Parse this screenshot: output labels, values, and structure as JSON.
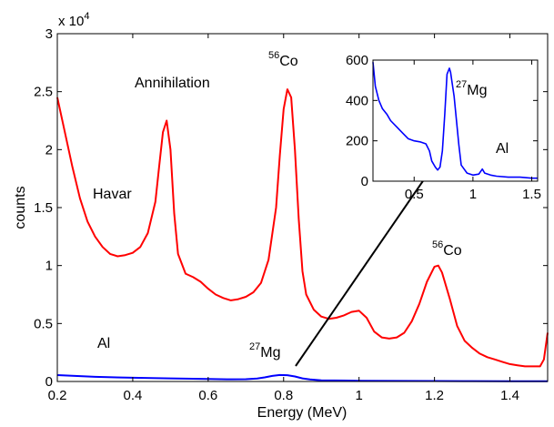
{
  "chart_data": [
    {
      "type": "line",
      "xlabel": "Energy (MeV)",
      "ylabel": "counts",
      "y_multiplier": "x 10",
      "y_multiplier_exp": "4",
      "xlim": [
        0.2,
        1.5
      ],
      "ylim": [
        0,
        30000
      ],
      "xticks": [
        "0.2",
        "0.4",
        "0.6",
        "0.8",
        "1",
        "1.2",
        "1.4"
      ],
      "yticks": [
        "0",
        "0.5",
        "1",
        "1.5",
        "2",
        "2.5",
        "3"
      ],
      "grid": false,
      "series": [
        {
          "color": "#ff0000",
          "x": [
            0.2,
            0.22,
            0.24,
            0.26,
            0.28,
            0.3,
            0.32,
            0.34,
            0.36,
            0.38,
            0.4,
            0.42,
            0.44,
            0.46,
            0.47,
            0.48,
            0.49,
            0.5,
            0.51,
            0.52,
            0.54,
            0.56,
            0.58,
            0.6,
            0.62,
            0.64,
            0.66,
            0.68,
            0.7,
            0.72,
            0.74,
            0.76,
            0.78,
            0.79,
            0.8,
            0.81,
            0.82,
            0.83,
            0.84,
            0.85,
            0.86,
            0.88,
            0.9,
            0.92,
            0.94,
            0.96,
            0.98,
            1.0,
            1.02,
            1.04,
            1.06,
            1.08,
            1.1,
            1.12,
            1.14,
            1.16,
            1.18,
            1.2,
            1.21,
            1.22,
            1.24,
            1.26,
            1.28,
            1.3,
            1.32,
            1.34,
            1.36,
            1.38,
            1.4,
            1.42,
            1.44,
            1.46,
            1.48,
            1.49,
            1.5
          ],
          "y": [
            24500,
            21500,
            18500,
            15800,
            13800,
            12500,
            11600,
            11000,
            10800,
            10900,
            11100,
            11600,
            12800,
            15500,
            18500,
            21500,
            22500,
            20000,
            14500,
            11000,
            9300,
            9000,
            8600,
            8000,
            7500,
            7200,
            7000,
            7100,
            7300,
            7700,
            8500,
            10500,
            15000,
            19500,
            23500,
            25200,
            24500,
            20000,
            14000,
            9500,
            7500,
            6200,
            5600,
            5400,
            5500,
            5700,
            6000,
            6100,
            5500,
            4300,
            3800,
            3700,
            3800,
            4200,
            5200,
            6700,
            8600,
            9900,
            10000,
            9400,
            7200,
            4800,
            3500,
            2900,
            2400,
            2100,
            1900,
            1700,
            1500,
            1400,
            1300,
            1300,
            1300,
            1900,
            4200
          ]
        },
        {
          "color": "#0000ff",
          "x": [
            0.2,
            0.3,
            0.4,
            0.5,
            0.6,
            0.65,
            0.7,
            0.73,
            0.75,
            0.77,
            0.79,
            0.81,
            0.83,
            0.85,
            0.87,
            0.9,
            1.0,
            1.1,
            1.2,
            1.3,
            1.4,
            1.5
          ],
          "y": [
            550,
            400,
            320,
            270,
            210,
            190,
            200,
            250,
            350,
            480,
            560,
            540,
            430,
            270,
            170,
            100,
            60,
            50,
            40,
            30,
            25,
            20
          ]
        }
      ],
      "annotations": [
        {
          "text": "Annihilation"
        },
        {
          "text": "Co",
          "sup": "56"
        },
        {
          "text": "Havar"
        },
        {
          "text": "Co",
          "sup": "56"
        },
        {
          "text": "Al"
        },
        {
          "text": "Mg",
          "sup": "27"
        }
      ]
    },
    {
      "type": "line",
      "xlim": [
        0.15,
        1.55
      ],
      "ylim": [
        0,
        600
      ],
      "xticks": [
        "0.5",
        "1",
        "1.5"
      ],
      "yticks": [
        "0",
        "200",
        "400",
        "600"
      ],
      "grid": false,
      "series": [
        {
          "color": "#0000ff",
          "x": [
            0.15,
            0.17,
            0.2,
            0.23,
            0.27,
            0.3,
            0.35,
            0.4,
            0.45,
            0.5,
            0.55,
            0.6,
            0.63,
            0.65,
            0.68,
            0.7,
            0.72,
            0.74,
            0.76,
            0.78,
            0.8,
            0.81,
            0.82,
            0.84,
            0.86,
            0.88,
            0.9,
            0.95,
            1.0,
            1.05,
            1.08,
            1.1,
            1.15,
            1.2,
            1.3,
            1.4,
            1.5,
            1.55
          ],
          "y": [
            590,
            470,
            400,
            360,
            330,
            300,
            270,
            240,
            210,
            200,
            195,
            185,
            150,
            100,
            70,
            55,
            70,
            150,
            330,
            530,
            560,
            540,
            500,
            420,
            300,
            180,
            80,
            40,
            30,
            35,
            60,
            40,
            30,
            25,
            20,
            20,
            15,
            15
          ]
        }
      ],
      "annotations": [
        {
          "text": "Mg",
          "sup": "27"
        },
        {
          "text": "Al"
        }
      ]
    }
  ]
}
